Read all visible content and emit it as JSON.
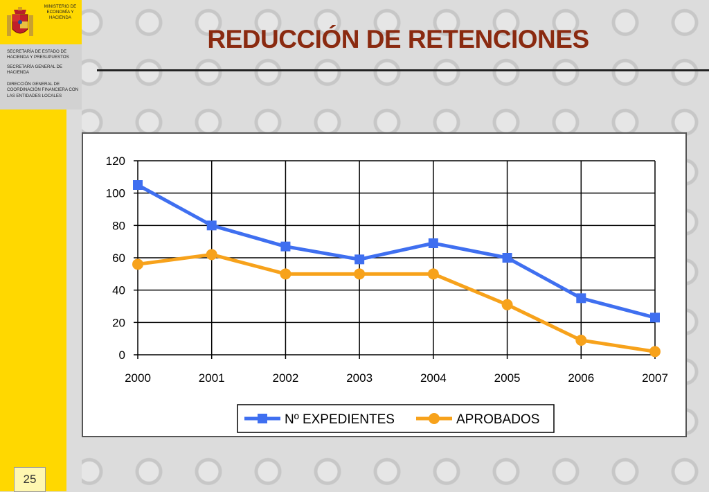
{
  "sidebar": {
    "ministry": "MINISTERIO DE ECONOMÍA Y HACIENDA",
    "sec1": "SECRETARÍA DE ESTADO DE HACIENDA Y PRESUPUESTOS",
    "sec2": "SECRETARÍA GENERAL DE HACIENDA",
    "sec3": "DIRECCIÓN GENERAL DE COORDINACIÓN FINANCIERA CON LAS ENTIDADES LOCALES",
    "page_number": "25",
    "coat_icon": "coat-of-arms-icon"
  },
  "slide": {
    "title": "REDUCCIÓN DE RETENCIONES"
  },
  "colors": {
    "sidebar_yellow": "#ffd800",
    "title_color": "#8a2a10",
    "series1": "#3f6ff0",
    "series2": "#f7a21b"
  },
  "chart_data": {
    "type": "line",
    "title": "",
    "xlabel": "",
    "ylabel": "",
    "x": [
      "2000",
      "2001",
      "2002",
      "2003",
      "2004",
      "2005",
      "2006",
      "2007"
    ],
    "ylim": [
      0,
      120
    ],
    "yticks": [
      0,
      20,
      40,
      60,
      80,
      100,
      120
    ],
    "grid": true,
    "legend_position": "bottom",
    "series": [
      {
        "name": "Nº EXPEDIENTES",
        "color": "#3f6ff0",
        "marker": "square",
        "values": [
          105,
          80,
          67,
          59,
          69,
          60,
          35,
          23
        ]
      },
      {
        "name": "APROBADOS",
        "color": "#f7a21b",
        "marker": "circle",
        "values": [
          56,
          62,
          50,
          50,
          50,
          31,
          9,
          2
        ]
      }
    ]
  }
}
